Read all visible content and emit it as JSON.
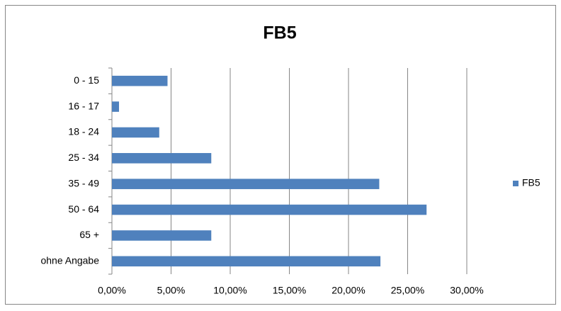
{
  "chart_data": {
    "type": "bar",
    "orientation": "horizontal",
    "title": "FB5",
    "categories": [
      "0 - 15",
      "16 - 17",
      "18 - 24",
      "25 - 34",
      "35 - 49",
      "50 - 64",
      "65 +",
      "ohne Angabe"
    ],
    "series": [
      {
        "name": "FB5",
        "color": "#4f81bd",
        "values": [
          4.7,
          0.6,
          4.0,
          8.4,
          22.6,
          26.6,
          8.4,
          22.7
        ]
      }
    ],
    "xlim": [
      0,
      30
    ],
    "xticks": [
      {
        "value": 0,
        "label": "0,00%"
      },
      {
        "value": 5,
        "label": "5,00%"
      },
      {
        "value": 10,
        "label": "10,00%"
      },
      {
        "value": 15,
        "label": "15,00%"
      },
      {
        "value": 20,
        "label": "20,00%"
      },
      {
        "value": 25,
        "label": "25,00%"
      },
      {
        "value": 30,
        "label": "30,00%"
      }
    ],
    "grid": true,
    "legend": "right"
  }
}
